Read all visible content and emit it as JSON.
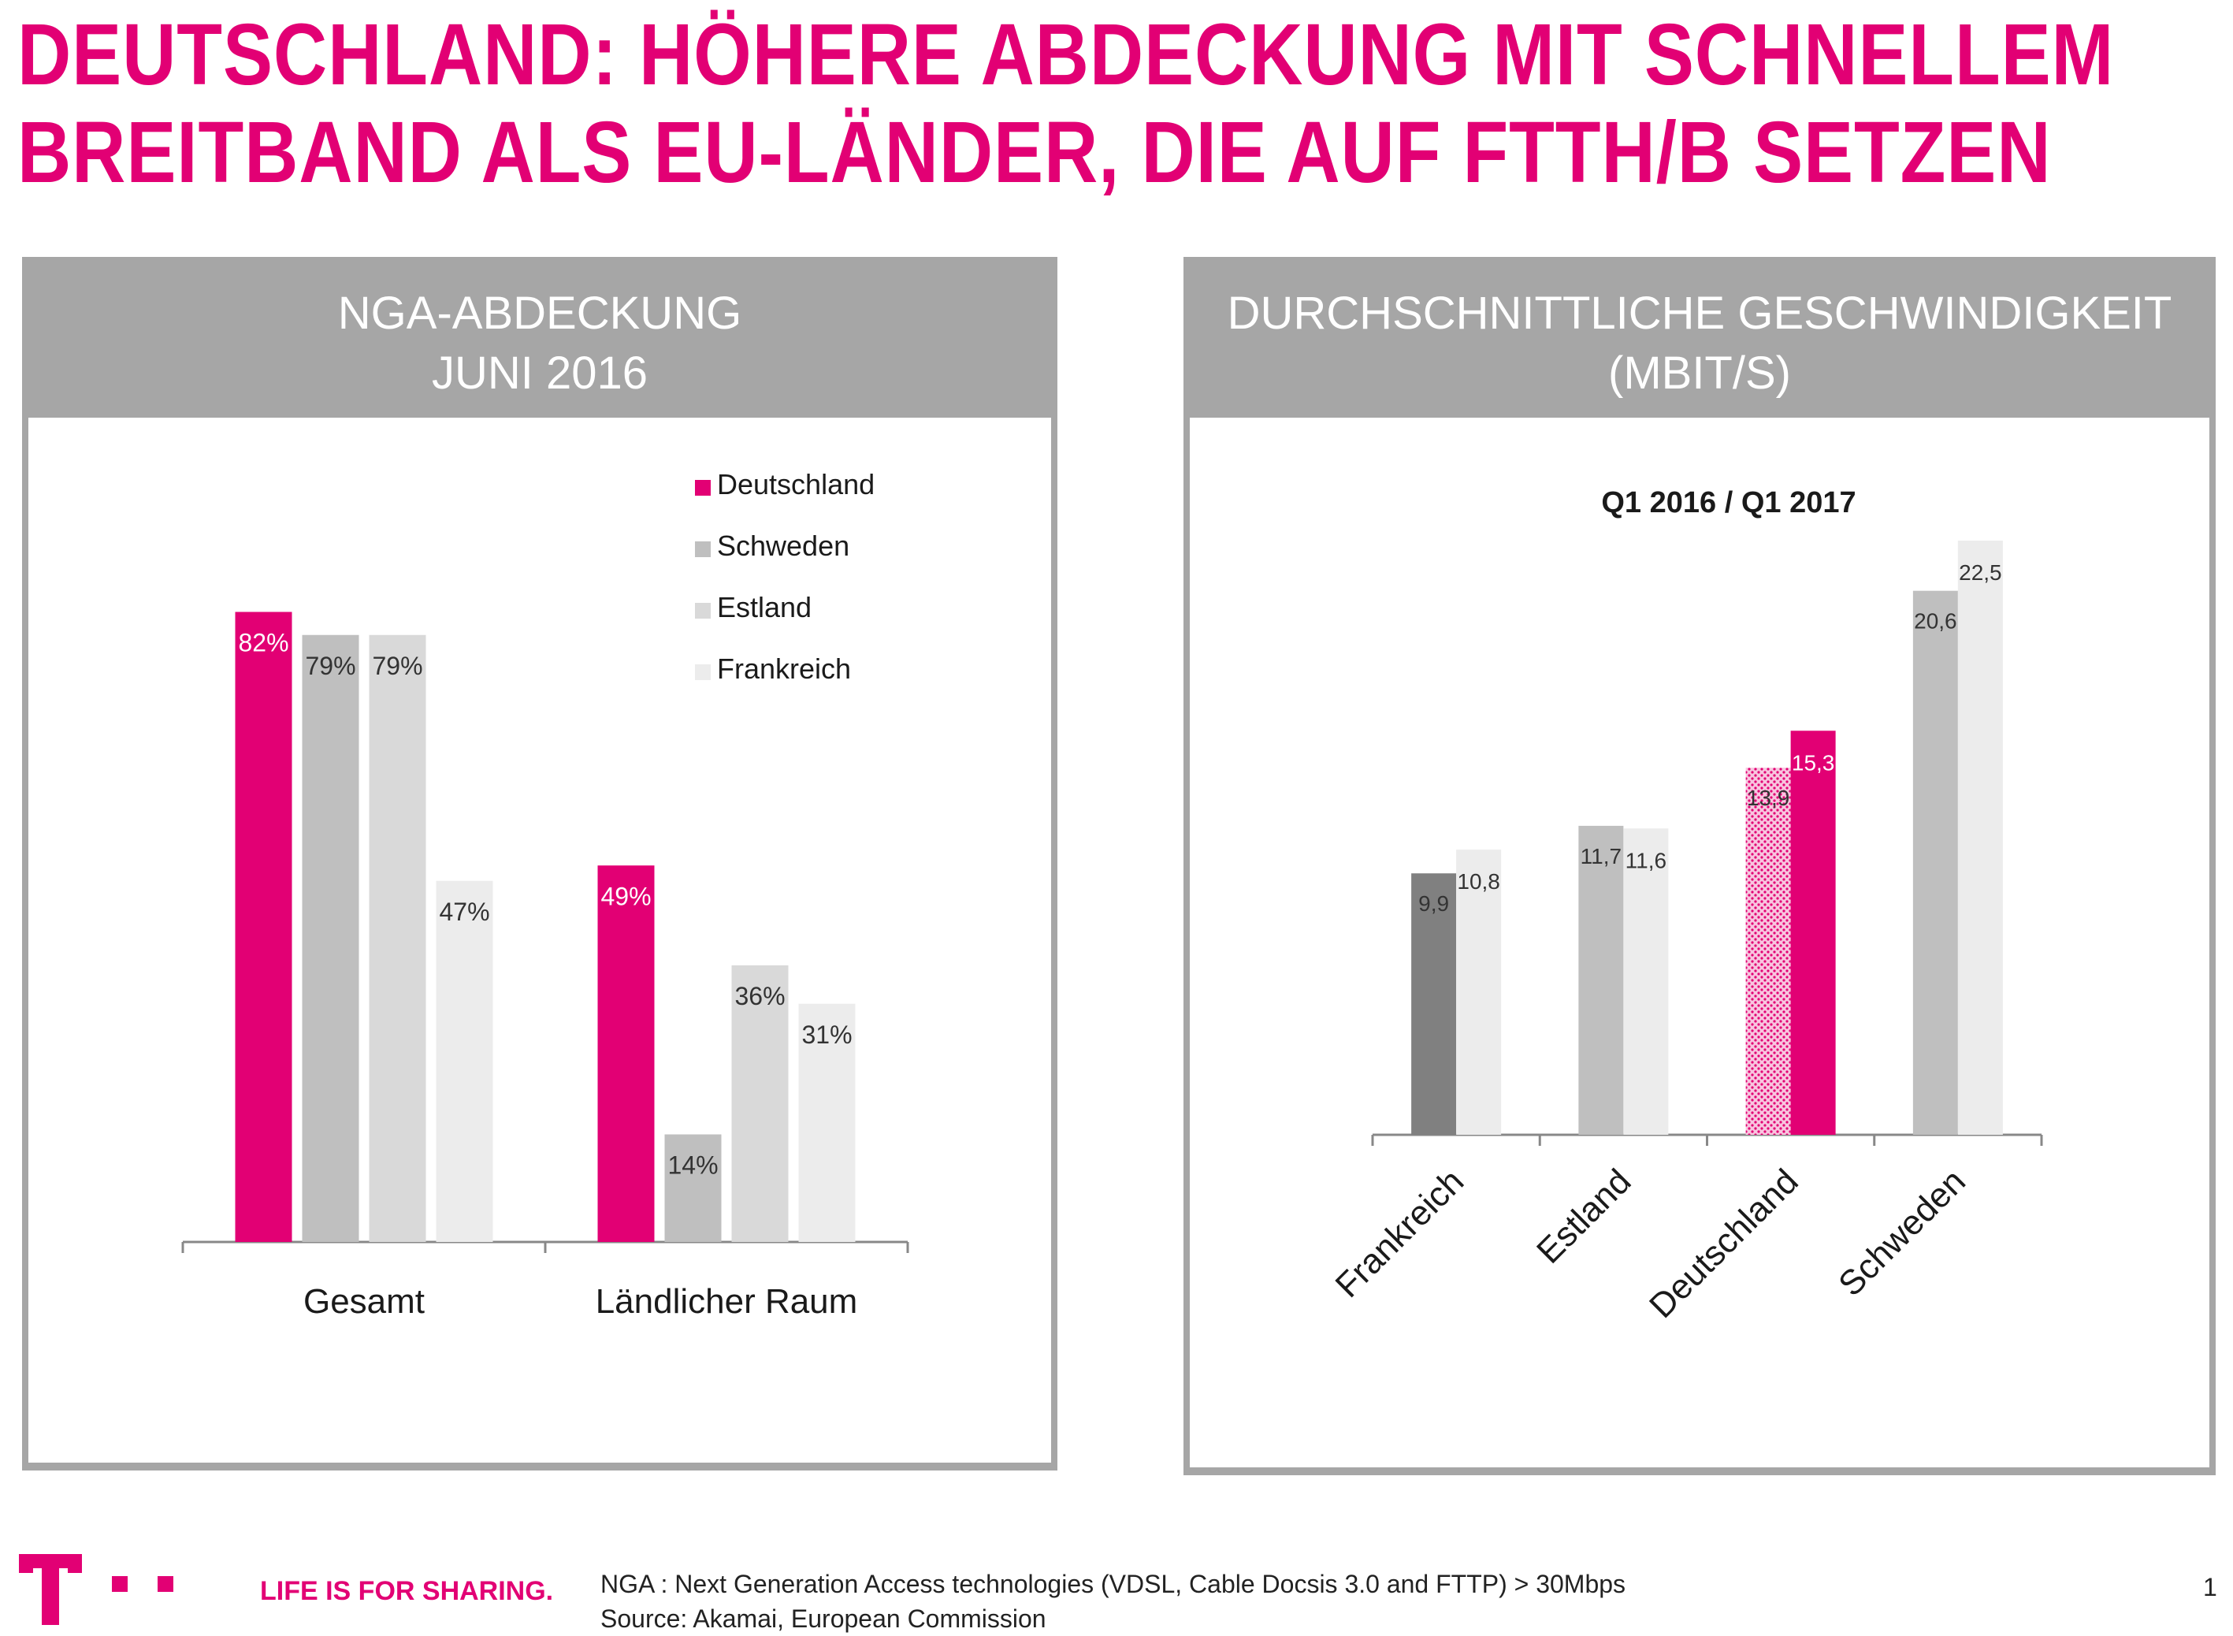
{
  "title": {
    "line1": "DEUTSCHLAND: HÖHERE ABDECKUNG MIT SCHNELLEM",
    "line2": "BREITBAND ALS EU-LÄNDER, DIE AUF FTTH/B SETZEN"
  },
  "left_panel": {
    "header_line1": "NGA-ABDECKUNG",
    "header_line2": "JUNI 2016"
  },
  "right_panel": {
    "header_line1": "DURCHSCHNITTLICHE GESCHWINDIGKEIT",
    "header_line2": "(MBIT/S)"
  },
  "chart_data": [
    {
      "type": "bar",
      "title": "",
      "categories": [
        "Gesamt",
        "Ländlicher Raum"
      ],
      "series": [
        {
          "name": "Deutschland",
          "values": [
            82,
            49
          ],
          "labels": [
            "82%",
            "49%"
          ],
          "color": "#e20074"
        },
        {
          "name": "Schweden",
          "values": [
            79,
            14
          ],
          "labels": [
            "79%",
            "14%"
          ],
          "color": "#bfbfbf"
        },
        {
          "name": "Estland",
          "values": [
            79,
            36
          ],
          "labels": [
            "79%",
            "36%"
          ],
          "color": "#d9d9d9"
        },
        {
          "name": "Frankreich",
          "values": [
            47,
            31
          ],
          "labels": [
            "47%",
            "31%"
          ],
          "color": "#ececec"
        }
      ],
      "ylim": [
        0,
        100
      ],
      "legend": "top-right",
      "grid": false
    },
    {
      "type": "bar",
      "title": "Q1 2016 / Q1 2017",
      "categories": [
        "Frankreich",
        "Estland",
        "Deutschland",
        "Schweden"
      ],
      "series": [
        {
          "name": "Q1 2016",
          "values": [
            9.9,
            11.7,
            13.9,
            20.6
          ],
          "labels": [
            "9,9",
            "11,7",
            "13,9",
            "20,6"
          ],
          "colors": [
            "#808080",
            "#bfbfbf",
            "#f4a6cf",
            "#bfbfbf"
          ]
        },
        {
          "name": "Q1 2017",
          "values": [
            10.8,
            11.6,
            15.3,
            22.5
          ],
          "labels": [
            "10,8",
            "11,6",
            "15,3",
            "22,5"
          ],
          "colors": [
            "#ececec",
            "#ececec",
            "#e20074",
            "#ececec"
          ]
        }
      ],
      "ylim": [
        0,
        23
      ],
      "legend": "none",
      "grid": false,
      "xtick_rotation": -45
    }
  ],
  "footer": {
    "slogan": "LIFE IS FOR SHARING.",
    "note1": "NGA : Next Generation Access technologies (VDSL, Cable Docsis 3.0 and FTTP) > 30Mbps",
    "note2": "Source: Akamai, European Commission",
    "page": "1"
  },
  "colors": {
    "brand": "#e20074",
    "panel_gray": "#a6a6a6"
  }
}
